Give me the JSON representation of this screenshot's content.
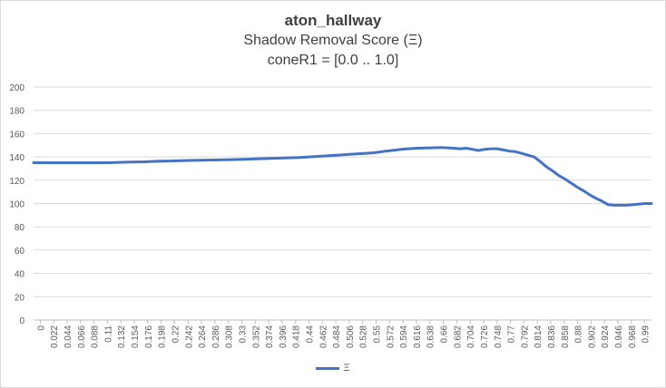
{
  "chart_data": {
    "type": "line",
    "title": "aton_hallway",
    "subtitle": "Shadow Removal Score (Ξ)",
    "subtitle2": "coneR1 = [0.0 .. 1.0]",
    "xlabel": "",
    "ylabel": "",
    "ylim": [
      0,
      200
    ],
    "yticks": [
      0,
      20,
      40,
      60,
      80,
      100,
      120,
      140,
      160,
      180,
      200
    ],
    "x_tick_labels": [
      "0",
      "0.022",
      "0.044",
      "0.066",
      "0.088",
      "0.11",
      "0.132",
      "0.154",
      "0.176",
      "0.198",
      "0.22",
      "0.242",
      "0.264",
      "0.286",
      "0.308",
      "0.33",
      "0.352",
      "0.374",
      "0.396",
      "0.418",
      "0.44",
      "0.462",
      "0.484",
      "0.506",
      "0.528",
      "0.55",
      "0.572",
      "0.594",
      "0.616",
      "0.638",
      "0.66",
      "0.682",
      "0.704",
      "0.726",
      "0.748",
      "0.77",
      "0.792",
      "0.814",
      "0.836",
      "0.858",
      "0.88",
      "0.902",
      "0.924",
      "0.946",
      "0.968",
      "0.99"
    ],
    "grid": true,
    "legend_position": "bottom",
    "color": "#4472c4",
    "series": [
      {
        "name": "Ξ",
        "x": [
          0,
          0.04,
          0.08,
          0.12,
          0.15,
          0.18,
          0.2,
          0.22,
          0.25,
          0.28,
          0.31,
          0.34,
          0.37,
          0.4,
          0.43,
          0.46,
          0.49,
          0.52,
          0.55,
          0.57,
          0.6,
          0.62,
          0.64,
          0.66,
          0.68,
          0.69,
          0.7,
          0.71,
          0.72,
          0.73,
          0.74,
          0.75,
          0.76,
          0.77,
          0.78,
          0.79,
          0.8,
          0.81,
          0.82,
          0.83,
          0.84,
          0.85,
          0.86,
          0.87,
          0.88,
          0.89,
          0.9,
          0.91,
          0.92,
          0.93,
          0.94,
          0.95,
          0.96,
          0.97,
          0.98,
          0.99,
          1.0
        ],
        "values": [
          135,
          135,
          135,
          135,
          135.5,
          135.8,
          136.3,
          136.5,
          137,
          137.3,
          137.5,
          138,
          138.5,
          139,
          139.5,
          140.5,
          141.5,
          142.5,
          143.5,
          145,
          146.8,
          147.5,
          147.8,
          148,
          147.5,
          147,
          147.5,
          146.5,
          145.5,
          146.5,
          147,
          147,
          146,
          145,
          144.5,
          143,
          141.5,
          140,
          136,
          131.5,
          128,
          124,
          121,
          117.5,
          114,
          111,
          107.5,
          104.5,
          102,
          99,
          98.5,
          98.5,
          98.5,
          99,
          99.5,
          100,
          100
        ]
      }
    ]
  }
}
